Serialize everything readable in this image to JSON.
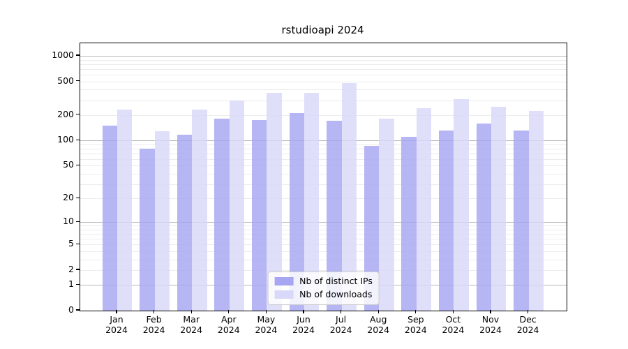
{
  "title": "rstudioapi 2024",
  "chart_data": {
    "type": "bar",
    "title": "rstudioapi 2024",
    "categories": [
      "Jan 2024",
      "Feb 2024",
      "Mar 2024",
      "Apr 2024",
      "May 2024",
      "Jun 2024",
      "Jul 2024",
      "Aug 2024",
      "Sep 2024",
      "Oct 2024",
      "Nov 2024",
      "Dec 2024"
    ],
    "series": [
      {
        "name": "Nb of distinct IPs",
        "color": "#a6a6f3",
        "values": [
          150,
          80,
          116,
          181,
          175,
          210,
          172,
          87,
          110,
          132,
          159,
          131
        ]
      },
      {
        "name": "Nb of downloads",
        "color": "#d8d8f8",
        "values": [
          232,
          128,
          232,
          297,
          366,
          366,
          480,
          181,
          240,
          310,
          249,
          224
        ]
      }
    ],
    "yscale": "log1p",
    "yticks": [
      0,
      1,
      2,
      5,
      10,
      20,
      50,
      100,
      200,
      500,
      1000
    ],
    "ylim": [
      0,
      1400
    ],
    "grid": true,
    "legend_position": "lower center",
    "xlabel": "",
    "ylabel": ""
  }
}
